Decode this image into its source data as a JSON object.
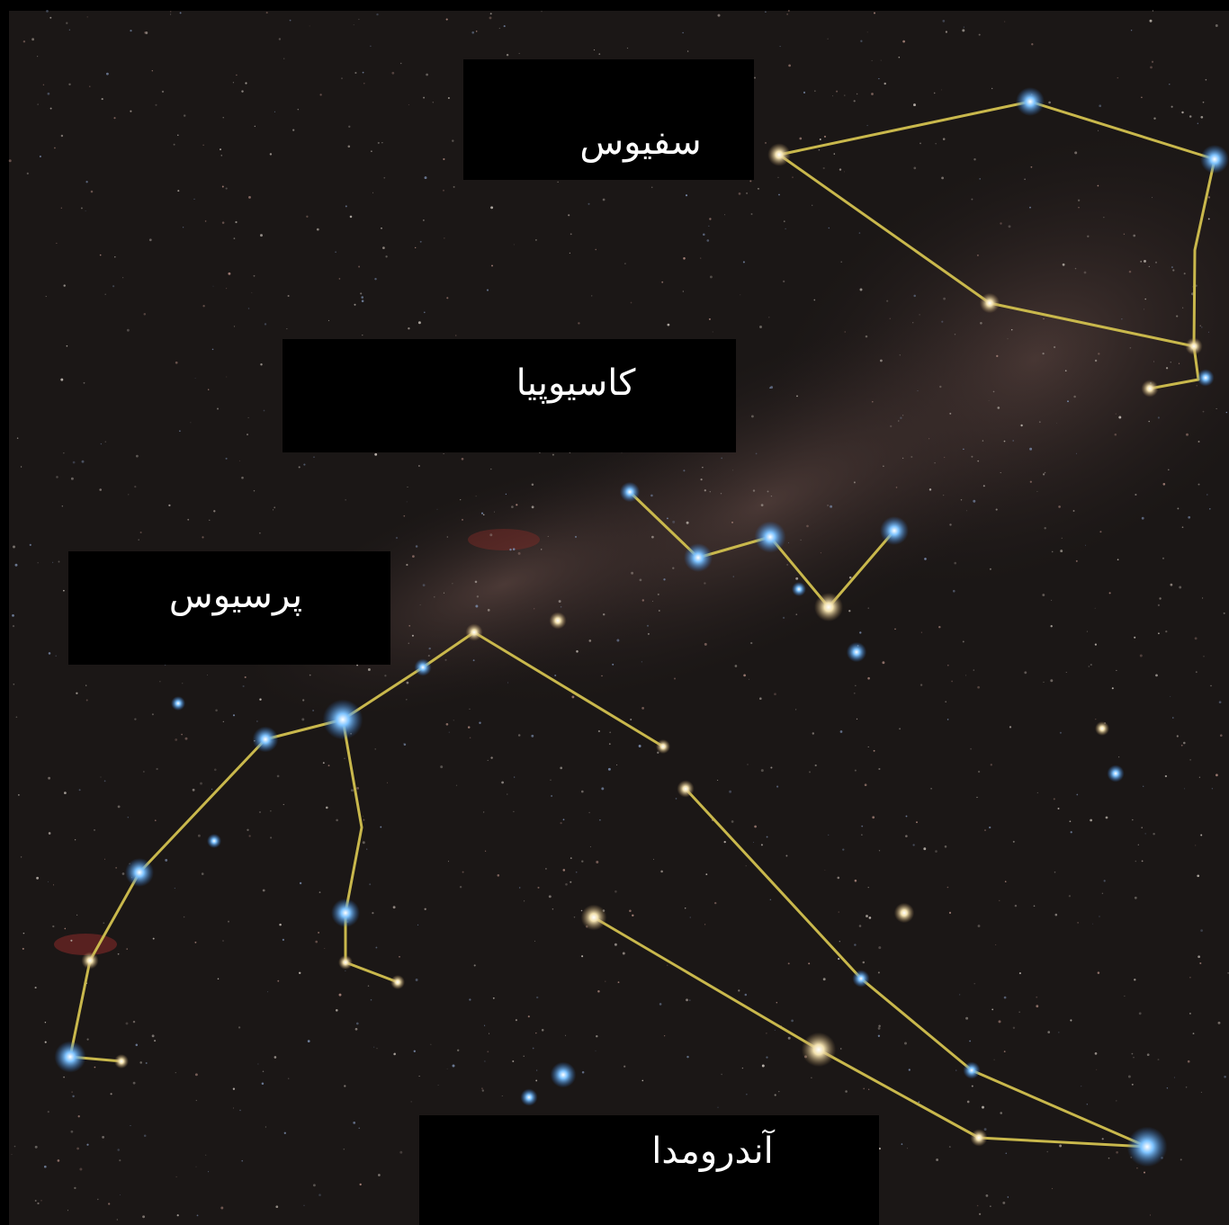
{
  "constellations": [
    {
      "label": "سفیوس"
    },
    {
      "label": "کاسیوپیا"
    },
    {
      "label": "پرسیوس"
    },
    {
      "label": "آندرومدا"
    }
  ]
}
